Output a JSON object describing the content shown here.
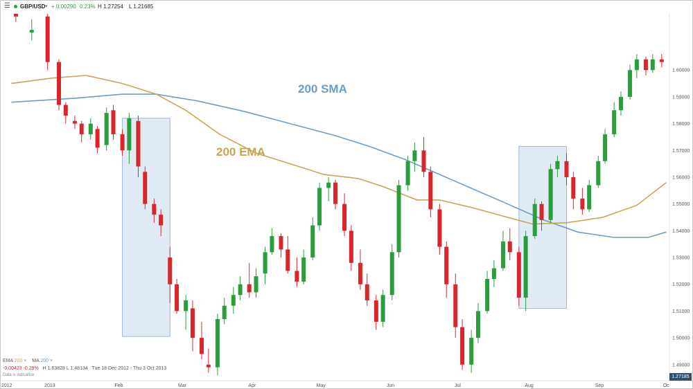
{
  "header": {
    "menu_icon": "hamburger-menu-icon",
    "symbol": "GBP/USD",
    "change": "+ 0.00290",
    "change_pct": "0.23%",
    "high": "H 1.27254",
    "low": "L 1.21685",
    "up_color": "#2a9d3c"
  },
  "legend": {
    "ema_label": "EMA",
    "ema_period": "200",
    "ma_label": "MA",
    "ma_period": "200",
    "close_icon": "x-icon",
    "stats": "-0.00423 -0.29%",
    "high": "H 1.63828",
    "low": "L 1.48134",
    "range": "Tue 18 Dec 2012 - Thu 3 Oct 2013",
    "disclaimer": "Data is indicative"
  },
  "last_price": "1.27185",
  "chart_data": {
    "type": "candlestick",
    "y_axis": {
      "side": "right",
      "ticks": [
        "1.60000",
        "1.59000",
        "1.58000",
        "1.57000",
        "1.56000",
        "1.55000",
        "1.54000",
        "1.53000",
        "1.52000",
        "1.51000",
        "1.50000",
        "1.49000"
      ]
    },
    "x_axis": {
      "ticks": [
        "2012",
        "2013",
        "Feb",
        "Mar",
        "Apr",
        "May",
        "Jun",
        "Jul",
        "Aug",
        "Sep",
        "Oc"
      ]
    },
    "colors": {
      "up": "#2a9d3c",
      "down": "#d9262b",
      "sma": "#6c9ec5",
      "ema": "#c9a550",
      "highlight": "#dce8f5",
      "highlight_border": "#9db8d8"
    },
    "annotations": [
      {
        "text": "200 SMA",
        "color": "#6c9ec5"
      },
      {
        "text": "200 EMA",
        "color": "#c9a550"
      }
    ],
    "series": [
      {
        "name": "200 SMA",
        "type": "line",
        "points": [
          [
            "2012-12-18",
            1.588
          ],
          [
            "2013-01-15",
            1.5895
          ],
          [
            "2013-02-05",
            1.591
          ],
          [
            "2013-02-20",
            1.591
          ],
          [
            "2013-03-10",
            1.5885
          ],
          [
            "2013-03-31",
            1.5845
          ],
          [
            "2013-04-20",
            1.58
          ],
          [
            "2013-05-10",
            1.5755
          ],
          [
            "2013-05-25",
            1.5715
          ],
          [
            "2013-06-10",
            1.5665
          ],
          [
            "2013-06-25",
            1.561
          ],
          [
            "2013-07-10",
            1.5555
          ],
          [
            "2013-07-25",
            1.55
          ],
          [
            "2013-08-10",
            1.544
          ],
          [
            "2013-08-25",
            1.5395
          ],
          [
            "2013-09-10",
            1.5375
          ],
          [
            "2013-09-25",
            1.5375
          ],
          [
            "2013-10-03",
            1.5395
          ]
        ]
      },
      {
        "name": "200 EMA",
        "type": "line",
        "points": [
          [
            "2012-12-18",
            1.595
          ],
          [
            "2013-01-05",
            1.597
          ],
          [
            "2013-01-20",
            1.598
          ],
          [
            "2013-02-05",
            1.595
          ],
          [
            "2013-02-20",
            1.591
          ],
          [
            "2013-03-05",
            1.585
          ],
          [
            "2013-03-20",
            1.576
          ],
          [
            "2013-04-05",
            1.569
          ],
          [
            "2013-04-20",
            1.565
          ],
          [
            "2013-05-05",
            1.561
          ],
          [
            "2013-05-20",
            1.5595
          ],
          [
            "2013-05-31",
            1.5565
          ],
          [
            "2013-06-15",
            1.5515
          ],
          [
            "2013-06-25",
            1.5515
          ],
          [
            "2013-07-10",
            1.5485
          ],
          [
            "2013-07-25",
            1.545
          ],
          [
            "2013-08-05",
            1.5425
          ],
          [
            "2013-08-20",
            1.543
          ],
          [
            "2013-09-05",
            1.545
          ],
          [
            "2013-09-20",
            1.5495
          ],
          [
            "2013-10-03",
            1.558
          ]
        ]
      },
      {
        "name": "GBP/USD",
        "type": "candlestick",
        "candles": [
          [
            "2012-12-20",
            1.625,
            1.627,
            1.618,
            1.62
          ],
          [
            "2012-12-27",
            1.614,
            1.619,
            1.611,
            1.615
          ],
          [
            "2013-01-03",
            1.62,
            1.621,
            1.6,
            1.603
          ],
          [
            "2013-01-08",
            1.603,
            1.604,
            1.585,
            1.587
          ],
          [
            "2013-01-11",
            1.587,
            1.588,
            1.58,
            1.583
          ],
          [
            "2013-01-15",
            1.581,
            1.583,
            1.578,
            1.58
          ],
          [
            "2013-01-18",
            1.58,
            1.581,
            1.573,
            1.576
          ],
          [
            "2013-01-22",
            1.576,
            1.582,
            1.574,
            1.58
          ],
          [
            "2013-01-25",
            1.578,
            1.579,
            1.569,
            1.571
          ],
          [
            "2013-01-29",
            1.572,
            1.586,
            1.57,
            1.584
          ],
          [
            "2013-02-01",
            1.585,
            1.587,
            1.574,
            1.576
          ],
          [
            "2013-02-05",
            1.576,
            1.578,
            1.568,
            1.57
          ],
          [
            "2013-02-08",
            1.57,
            1.584,
            1.565,
            1.582
          ],
          [
            "2013-02-12",
            1.581,
            1.583,
            1.56,
            1.564
          ],
          [
            "2013-02-15",
            1.562,
            1.564,
            1.548,
            1.55
          ],
          [
            "2013-02-19",
            1.55,
            1.552,
            1.543,
            1.546
          ],
          [
            "2013-02-22",
            1.546,
            1.548,
            1.538,
            1.542
          ],
          [
            "2013-02-26",
            1.53,
            1.534,
            1.513,
            1.52
          ],
          [
            "2013-03-01",
            1.52,
            1.522,
            1.509,
            1.51
          ],
          [
            "2013-03-05",
            1.51,
            1.516,
            1.503,
            1.514
          ],
          [
            "2013-03-08",
            1.511,
            1.514,
            1.495,
            1.5
          ],
          [
            "2013-03-12",
            1.5,
            1.506,
            1.492,
            1.494
          ],
          [
            "2013-03-15",
            1.49,
            1.496,
            1.487,
            1.489
          ],
          [
            "2013-03-19",
            1.489,
            1.509,
            1.486,
            1.507
          ],
          [
            "2013-03-22",
            1.507,
            1.515,
            1.505,
            1.512
          ],
          [
            "2013-03-26",
            1.512,
            1.519,
            1.509,
            1.516
          ],
          [
            "2013-03-29",
            1.516,
            1.523,
            1.514,
            1.52
          ],
          [
            "2013-04-02",
            1.52,
            1.528,
            1.515,
            1.517
          ],
          [
            "2013-04-05",
            1.517,
            1.526,
            1.515,
            1.523
          ],
          [
            "2013-04-09",
            1.524,
            1.534,
            1.52,
            1.532
          ],
          [
            "2013-04-12",
            1.532,
            1.541,
            1.531,
            1.538
          ],
          [
            "2013-04-16",
            1.538,
            1.539,
            1.53,
            1.533
          ],
          [
            "2013-04-19",
            1.533,
            1.538,
            1.524,
            1.525
          ],
          [
            "2013-04-23",
            1.525,
            1.53,
            1.519,
            1.521
          ],
          [
            "2013-04-26",
            1.521,
            1.533,
            1.52,
            1.53
          ],
          [
            "2013-04-30",
            1.53,
            1.545,
            1.529,
            1.542
          ],
          [
            "2013-05-03",
            1.542,
            1.558,
            1.54,
            1.556
          ],
          [
            "2013-05-07",
            1.556,
            1.56,
            1.551,
            1.558
          ],
          [
            "2013-05-10",
            1.558,
            1.559,
            1.548,
            1.55
          ],
          [
            "2013-05-14",
            1.55,
            1.554,
            1.538,
            1.54
          ],
          [
            "2013-05-17",
            1.54,
            1.542,
            1.525,
            1.528
          ],
          [
            "2013-05-21",
            1.528,
            1.533,
            1.518,
            1.52
          ],
          [
            "2013-05-24",
            1.52,
            1.524,
            1.512,
            1.514
          ],
          [
            "2013-05-28",
            1.514,
            1.516,
            1.503,
            1.506
          ],
          [
            "2013-05-31",
            1.506,
            1.518,
            1.504,
            1.516
          ],
          [
            "2013-06-04",
            1.516,
            1.535,
            1.514,
            1.532
          ],
          [
            "2013-06-07",
            1.532,
            1.559,
            1.53,
            1.557
          ],
          [
            "2013-06-11",
            1.557,
            1.568,
            1.555,
            1.566
          ],
          [
            "2013-06-14",
            1.566,
            1.573,
            1.562,
            1.57
          ],
          [
            "2013-06-18",
            1.57,
            1.575,
            1.56,
            1.562
          ],
          [
            "2013-06-21",
            1.562,
            1.564,
            1.545,
            1.548
          ],
          [
            "2013-06-25",
            1.548,
            1.55,
            1.531,
            1.534
          ],
          [
            "2013-06-28",
            1.534,
            1.536,
            1.515,
            1.52
          ],
          [
            "2013-07-02",
            1.52,
            1.524,
            1.5,
            1.504
          ],
          [
            "2013-07-05",
            1.504,
            1.507,
            1.488,
            1.49
          ],
          [
            "2013-07-09",
            1.49,
            1.503,
            1.487,
            1.5
          ],
          [
            "2013-07-12",
            1.5,
            1.513,
            1.498,
            1.51
          ],
          [
            "2013-07-16",
            1.51,
            1.525,
            1.509,
            1.522
          ],
          [
            "2013-07-19",
            1.522,
            1.529,
            1.519,
            1.526
          ],
          [
            "2013-07-23",
            1.526,
            1.54,
            1.525,
            1.536
          ],
          [
            "2013-07-26",
            1.536,
            1.541,
            1.529,
            1.532
          ],
          [
            "2013-07-30",
            1.532,
            1.534,
            1.512,
            1.515
          ],
          [
            "2013-08-02",
            1.515,
            1.54,
            1.51,
            1.538
          ],
          [
            "2013-08-06",
            1.538,
            1.552,
            1.537,
            1.55
          ],
          [
            "2013-08-09",
            1.55,
            1.551,
            1.54,
            1.544
          ],
          [
            "2013-08-13",
            1.544,
            1.565,
            1.543,
            1.563
          ],
          [
            "2013-08-16",
            1.563,
            1.568,
            1.56,
            1.566
          ],
          [
            "2013-08-20",
            1.566,
            1.569,
            1.557,
            1.56
          ],
          [
            "2013-08-23",
            1.56,
            1.562,
            1.548,
            1.552
          ],
          [
            "2013-08-27",
            1.552,
            1.556,
            1.546,
            1.548
          ],
          [
            "2013-08-30",
            1.548,
            1.559,
            1.547,
            1.557
          ],
          [
            "2013-09-03",
            1.557,
            1.568,
            1.556,
            1.566
          ],
          [
            "2013-09-06",
            1.566,
            1.578,
            1.565,
            1.576
          ],
          [
            "2013-09-10",
            1.576,
            1.588,
            1.575,
            1.585
          ],
          [
            "2013-09-13",
            1.585,
            1.592,
            1.583,
            1.59
          ],
          [
            "2013-09-17",
            1.59,
            1.602,
            1.589,
            1.6
          ],
          [
            "2013-09-20",
            1.6,
            1.606,
            1.597,
            1.604
          ],
          [
            "2013-09-24",
            1.604,
            1.605,
            1.598,
            1.6
          ],
          [
            "2013-09-27",
            1.6,
            1.606,
            1.599,
            1.604
          ],
          [
            "2013-10-01",
            1.604,
            1.606,
            1.601,
            1.603
          ]
        ]
      }
    ],
    "highlights": [
      {
        "from": "2013-02-05",
        "to": "2013-02-26",
        "top": 1.582,
        "bottom": 1.5005
      },
      {
        "from": "2013-07-30",
        "to": "2013-08-20",
        "top": 1.5715,
        "bottom": 1.511
      }
    ]
  }
}
